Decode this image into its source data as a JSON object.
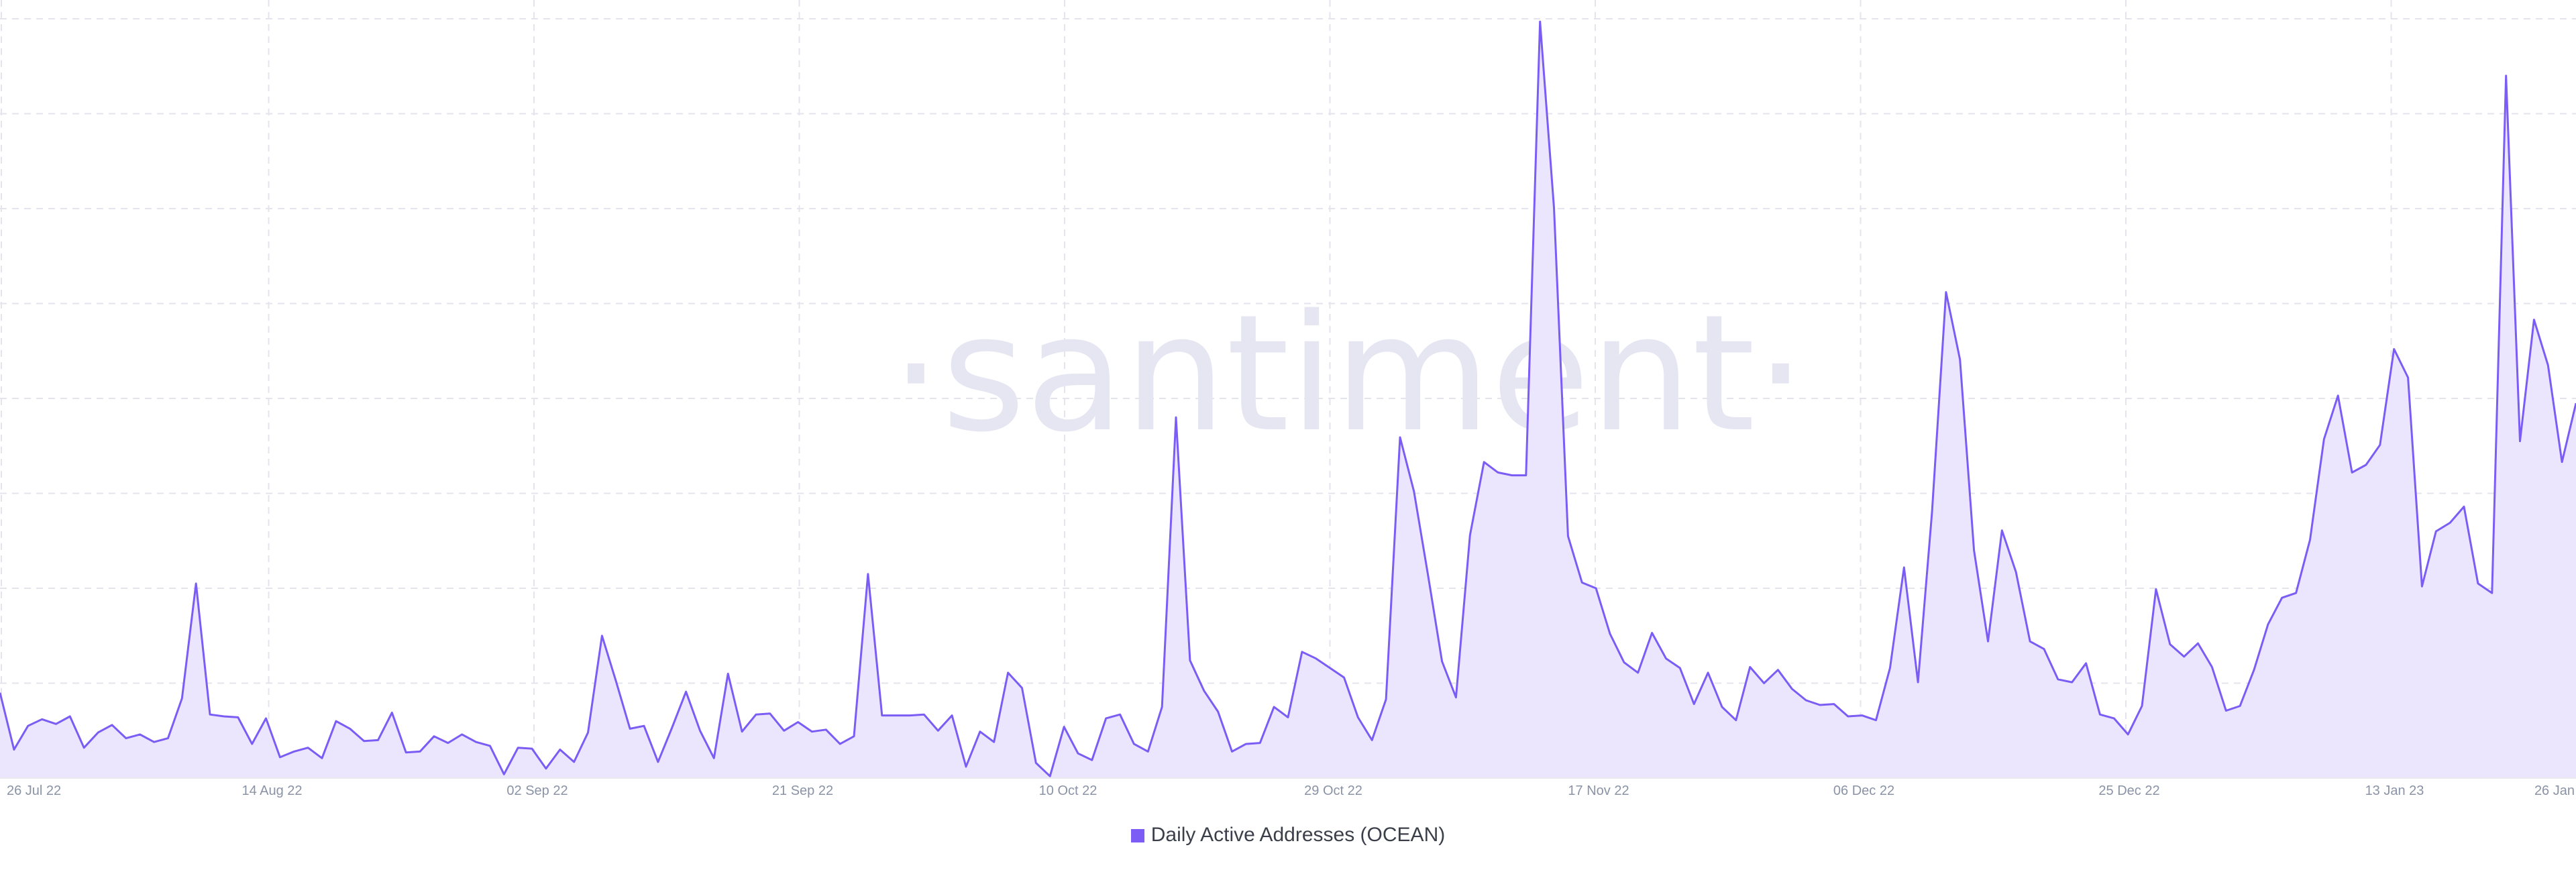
{
  "watermark": "·santiment·",
  "colors": {
    "line": "#7b5cf5",
    "fill": "#ebe6fd",
    "grid": "#e4e4ec",
    "axis_text": "#8a93a6"
  },
  "chart_data": {
    "type": "area",
    "title": "",
    "xlabel": "",
    "ylabel": "",
    "grid": true,
    "legend_position": "bottom-center",
    "x_ticks": [
      "26 Jul 22",
      "14 Aug 22",
      "02 Sep 22",
      "21 Sep 22",
      "10 Oct 22",
      "29 Oct 22",
      "17 Nov 22",
      "06 Dec 22",
      "25 Dec 22",
      "13 Jan 23",
      "26 Jan"
    ],
    "series": [
      {
        "name": "Daily Active Addresses (OCEAN)",
        "x_start": "2022-07-26",
        "x_end": "2023-01-27",
        "values": [
          9,
          3,
          5.5,
          6.2,
          5.7,
          6.5,
          3.2,
          4.8,
          5.6,
          4.2,
          4.6,
          3.8,
          4.2,
          8.4,
          20.5,
          6.7,
          6.5,
          6.4,
          3.6,
          6.3,
          2.2,
          2.8,
          3.2,
          2.1,
          6.0,
          5.2,
          3.9,
          4.0,
          6.9,
          2.7,
          2.8,
          4.4,
          3.7,
          4.6,
          3.8,
          3.4,
          0.4,
          3.2,
          3.1,
          1.0,
          3.0,
          1.7,
          4.8,
          15.0,
          10.2,
          5.2,
          5.5,
          1.7,
          5.3,
          9.1,
          5.0,
          2.1,
          11.0,
          4.9,
          6.7,
          6.8,
          5.0,
          5.9,
          4.9,
          5.1,
          3.6,
          4.4,
          21.5,
          6.6,
          6.6,
          6.6,
          6.7,
          5.0,
          6.6,
          1.2,
          4.9,
          3.8,
          11.1,
          9.5,
          1.6,
          0.2,
          5.4,
          2.6,
          1.9,
          6.3,
          6.7,
          3.6,
          2.8,
          7.5,
          38.0,
          12.4,
          9.2,
          7.0,
          2.8,
          3.6,
          3.7,
          7.5,
          6.4,
          13.3,
          12.6,
          11.6,
          10.6,
          6.4,
          4.0,
          8.3,
          35.9,
          30.2,
          21.4,
          12.3,
          8.5,
          25.6,
          33.3,
          32.2,
          31.9,
          31.9,
          79.7,
          60.1,
          25.5,
          20.6,
          20.0,
          15.2,
          12.2,
          11.1,
          15.3,
          12.6,
          11.6,
          7.8,
          11.1,
          7.5,
          6.1,
          11.7,
          10.0,
          11.4,
          9.4,
          8.2,
          7.7,
          7.8,
          6.5,
          6.6,
          6.1,
          11.6,
          22.2,
          10.1,
          28.0,
          51.2,
          44.1,
          24.0,
          14.4,
          26.1,
          21.7,
          14.4,
          13.6,
          10.4,
          10.1,
          12.1,
          6.7,
          6.3,
          4.6,
          7.6,
          19.9,
          14.1,
          12.8,
          14.2,
          11.7,
          7.1,
          7.6,
          11.4,
          16.2,
          19.0,
          19.5,
          25.1,
          35.7,
          40.3,
          32.2,
          33.0,
          35.1,
          45.2,
          42.2,
          20.2,
          26.0,
          26.9,
          28.6,
          20.5,
          19.5,
          74.0,
          35.5,
          48.3,
          43.5,
          33.3,
          39.5
        ]
      }
    ]
  },
  "legend": {
    "label": "Daily Active Addresses (OCEAN)"
  }
}
